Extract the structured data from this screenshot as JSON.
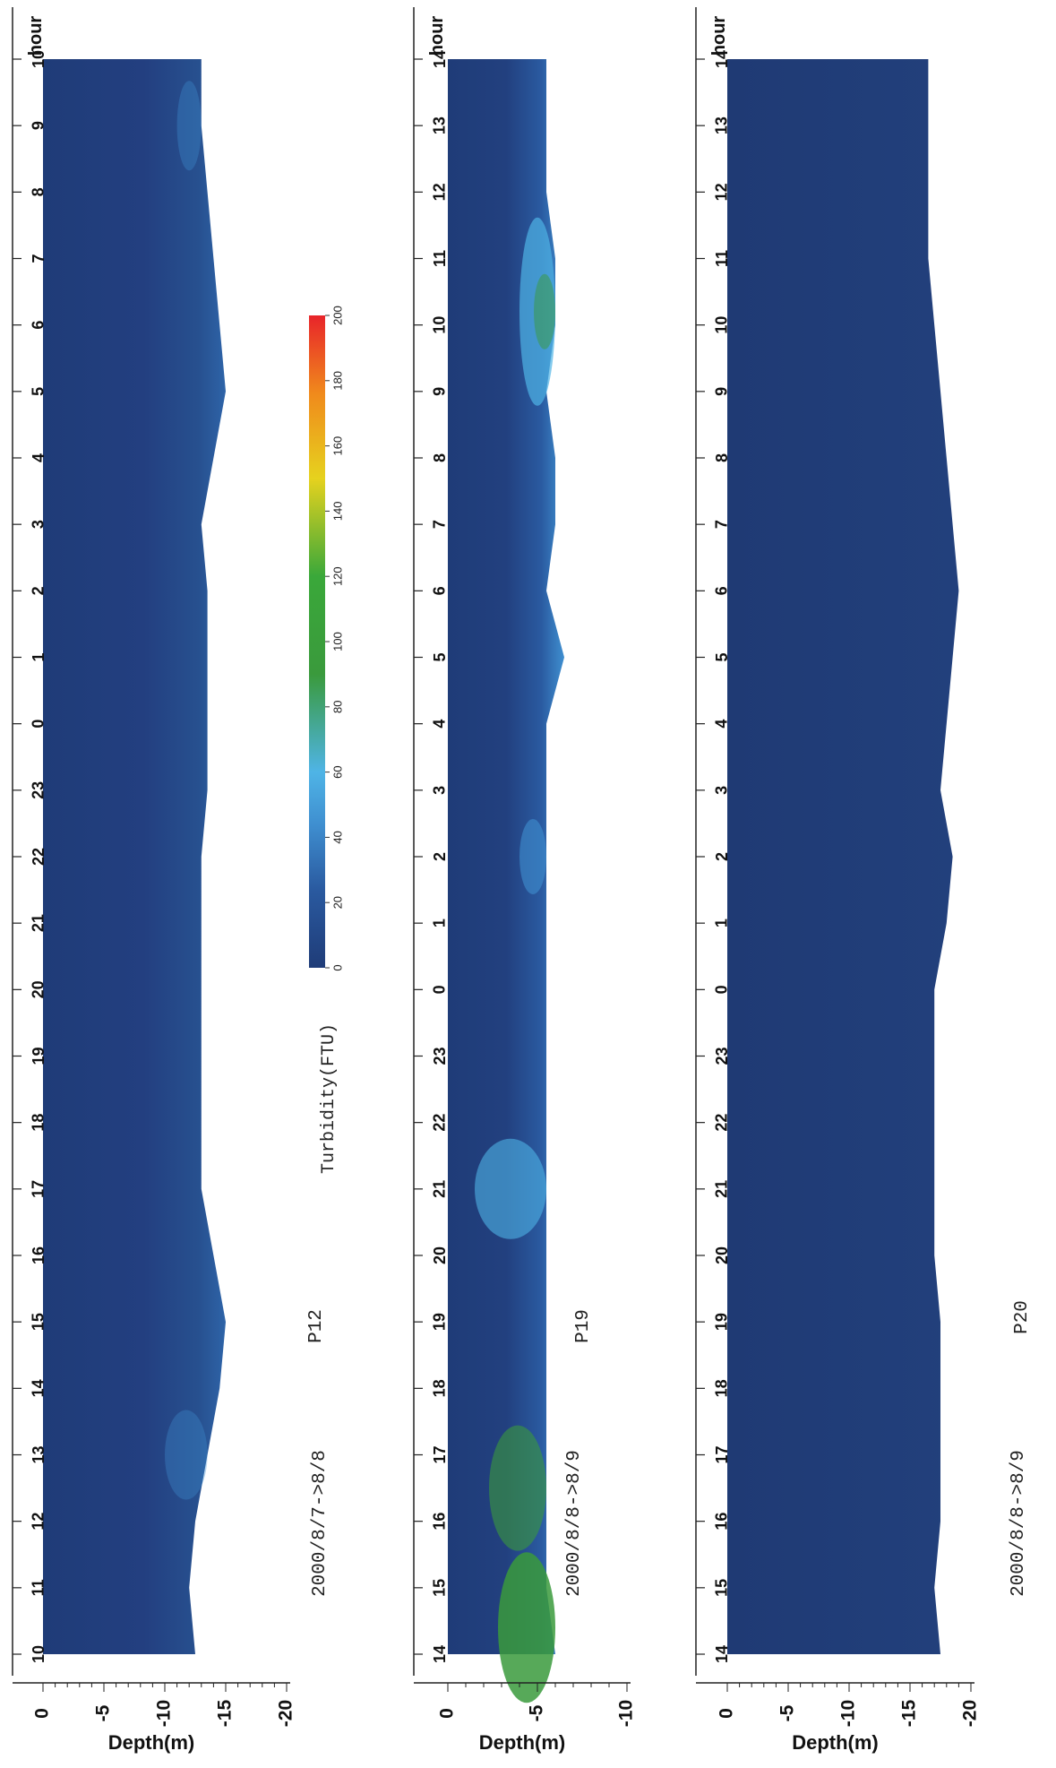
{
  "colors": {
    "deep": "#1f3c78",
    "mid": "#2a5aa0",
    "light": "#3f8fd0",
    "cyan": "#4fb4e6",
    "green": "#3a9a3c",
    "yellow": "#e6d21e",
    "red": "#e8242a"
  },
  "colorbar": {
    "label": "Turbidity(FTU)",
    "min": 0,
    "max": 200,
    "ticks": [
      "0",
      "20",
      "40",
      "60",
      "80",
      "100",
      "120",
      "140",
      "160",
      "180",
      "200"
    ]
  },
  "chart_data": [
    {
      "type": "heatmap",
      "station": "P12",
      "period": "2000/8/7->8/8",
      "hour_label": "hour",
      "hour_ticks": [
        "10",
        "11",
        "12",
        "13",
        "14",
        "15",
        "16",
        "17",
        "18",
        "19",
        "20",
        "21",
        "22",
        "23",
        "0",
        "1",
        "2",
        "3",
        "4",
        "5",
        "6",
        "7",
        "8",
        "9",
        "10"
      ],
      "ylabel": "Depth(m)",
      "depth_ticks": [
        "0",
        "-5",
        "-10",
        "-15",
        "-20"
      ],
      "depth_values": [
        0,
        -5,
        -10,
        -15,
        -20
      ],
      "ylim": [
        0,
        -20
      ],
      "bottom_depth": [
        -12.5,
        -12.0,
        -12.5,
        -13.5,
        -14.5,
        -15.0,
        -14.0,
        -13.0,
        -13.0,
        -13.0,
        -13.0,
        -13.0,
        -13.0,
        -13.5,
        -13.5,
        -13.5,
        -13.5,
        -13.0,
        -14.0,
        -15.0,
        -14.5,
        -14.0,
        -13.5,
        -13.0,
        -13.0
      ],
      "turbidity_range": [
        5,
        35
      ]
    },
    {
      "type": "heatmap",
      "station": "P19",
      "period": "2000/8/8->8/9",
      "hour_label": "hour",
      "hour_ticks": [
        "14",
        "15",
        "16",
        "17",
        "18",
        "19",
        "20",
        "21",
        "22",
        "23",
        "0",
        "1",
        "2",
        "3",
        "4",
        "5",
        "6",
        "7",
        "8",
        "9",
        "10",
        "11",
        "12",
        "13",
        "14"
      ],
      "ylabel": "Depth(m)",
      "depth_ticks": [
        "0",
        "-5",
        "-10"
      ],
      "depth_values": [
        0,
        -5,
        -10
      ],
      "ylim": [
        0,
        -10
      ],
      "bottom_depth": [
        -6.0,
        -5.5,
        -5.5,
        -5.5,
        -5.5,
        -5.5,
        -5.5,
        -5.5,
        -5.5,
        -5.5,
        -5.5,
        -5.5,
        -5.5,
        -5.5,
        -5.5,
        -6.5,
        -5.5,
        -6.0,
        -6.0,
        -5.5,
        -6.0,
        -6.0,
        -5.5,
        -5.5,
        -5.5
      ],
      "turbidity_range": [
        5,
        110
      ]
    },
    {
      "type": "heatmap",
      "station": "P20",
      "period": "2000/8/8->8/9",
      "hour_label": "hour",
      "hour_ticks": [
        "14",
        "15",
        "16",
        "17",
        "18",
        "19",
        "20",
        "21",
        "22",
        "23",
        "0",
        "1",
        "2",
        "3",
        "4",
        "5",
        "6",
        "7",
        "8",
        "9",
        "10",
        "11",
        "12",
        "13",
        "14"
      ],
      "ylabel": "Depth(m)",
      "depth_ticks": [
        "0",
        "-5",
        "-10",
        "-15",
        "-20"
      ],
      "depth_values": [
        0,
        -5,
        -10,
        -15,
        -20
      ],
      "ylim": [
        0,
        -20
      ],
      "bottom_depth": [
        -17.5,
        -17.0,
        -17.5,
        -17.5,
        -17.5,
        -17.5,
        -17.0,
        -17.0,
        -17.0,
        -17.0,
        -17.0,
        -18.0,
        -18.5,
        -17.5,
        -18.0,
        -18.5,
        -19.0,
        -18.5,
        -18.0,
        -17.5,
        -17.0,
        -16.5,
        -16.5,
        -16.5,
        -16.5
      ],
      "turbidity_range": [
        5,
        20
      ]
    }
  ]
}
